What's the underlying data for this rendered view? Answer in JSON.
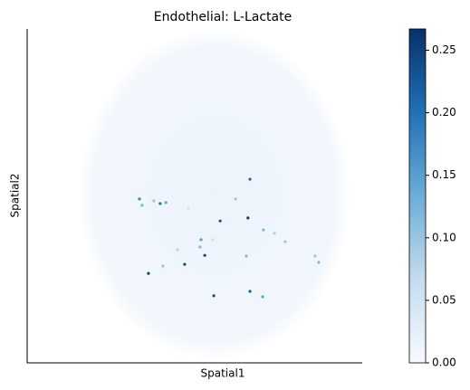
{
  "chart_data": {
    "type": "scatter",
    "title": "Endothelial: L-Lactate",
    "x_label": "Spatial1",
    "y_label": "Spatial2",
    "xlim": [
      0,
      100
    ],
    "ylim": [
      0,
      100
    ],
    "colormap": [
      "#f7fbff",
      "#c6dbef",
      "#6baed6",
      "#2171b5",
      "#08306b"
    ],
    "clim": [
      0,
      0.267
    ],
    "cticks": [
      {
        "value": 0,
        "label": "0.00"
      },
      {
        "value": 0.05,
        "label": "0.05"
      },
      {
        "value": 0.1,
        "label": "0.10"
      },
      {
        "value": 0.15,
        "label": "0.15"
      },
      {
        "value": 0.2,
        "label": "0.20"
      },
      {
        "value": 0.25,
        "label": "0.25"
      }
    ],
    "x": [
      66.5,
      33.5,
      34.3,
      37.8,
      39.7,
      41.4,
      57.6,
      65.9,
      62.2,
      70.5,
      73.8,
      51.9,
      51.6,
      53.0,
      47.0,
      36.2,
      40.5,
      65.4,
      55.7,
      66.5,
      70.3,
      77.0,
      85.9,
      87.0,
      44.9,
      55.4,
      48.1
    ],
    "y": [
      55.0,
      49.1,
      47.2,
      48.5,
      47.7,
      48.0,
      42.5,
      43.4,
      49.1,
      39.8,
      38.8,
      36.9,
      34.7,
      32.2,
      29.5,
      26.8,
      29.0,
      32.0,
      20.1,
      21.4,
      19.8,
      36.3,
      32.0,
      30.1,
      33.9,
      36.9,
      46.3
    ],
    "values": [
      0.22,
      0.18,
      0.12,
      0.1,
      0.2,
      0.14,
      0.24,
      0.26,
      0.1,
      0.12,
      0.08,
      0.15,
      0.12,
      0.25,
      0.24,
      0.25,
      0.1,
      0.12,
      0.24,
      0.22,
      0.15,
      0.1,
      0.1,
      0.12,
      0.08,
      0.06,
      0.05
    ]
  }
}
